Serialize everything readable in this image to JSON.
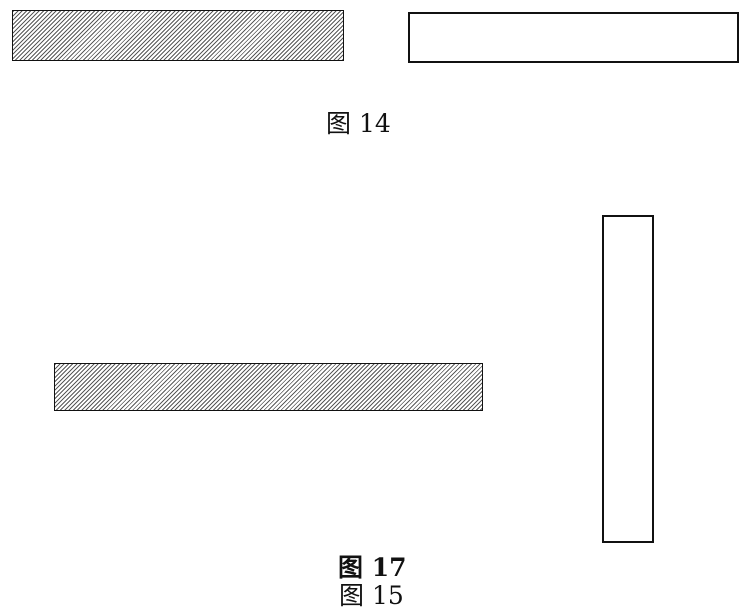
{
  "figure_14": {
    "caption": "图 14",
    "bars": [
      {
        "fill": "hatched",
        "orientation": "horizontal"
      },
      {
        "fill": "white",
        "orientation": "horizontal"
      }
    ]
  },
  "figure_15": {
    "caption": "图 15",
    "bars": [
      {
        "fill": "hatched",
        "orientation": "horizontal"
      },
      {
        "fill": "white",
        "orientation": "vertical"
      }
    ]
  },
  "stray_caption_fragment": "图 17",
  "colors": {
    "stroke": "#111111",
    "hatch": "#5a5a5a",
    "background": "#ffffff"
  }
}
